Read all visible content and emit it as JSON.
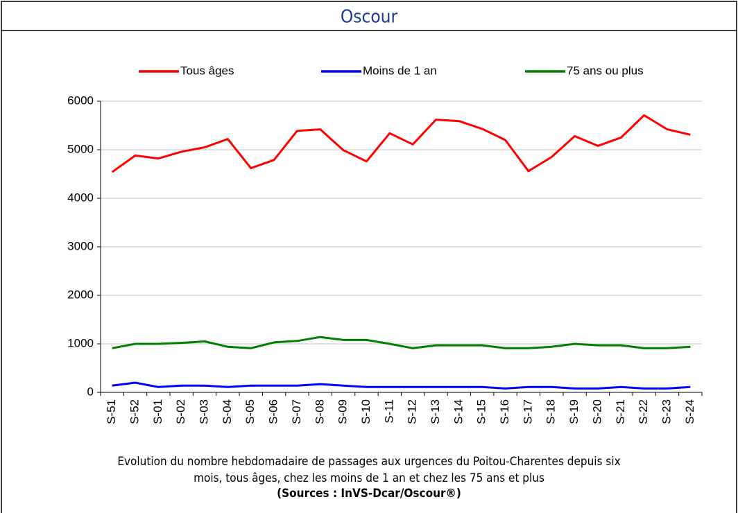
{
  "header": {
    "title": "Oscour"
  },
  "chart_data": {
    "type": "line",
    "categories": [
      "S-51",
      "S-52",
      "S-01",
      "S-02",
      "S-03",
      "S-04",
      "S-05",
      "S-06",
      "S-07",
      "S-08",
      "S-09",
      "S-10",
      "S-11",
      "S-12",
      "S-13",
      "S-14",
      "S-15",
      "S-16",
      "S-17",
      "S-18",
      "S-19",
      "S-20",
      "S-21",
      "S-22",
      "S-23",
      "S-24"
    ],
    "series": [
      {
        "name": "Tous âges",
        "color": "#ff0000",
        "values": [
          4540,
          4880,
          4820,
          4960,
          5050,
          5220,
          4620,
          4790,
          5390,
          5420,
          4990,
          4760,
          5340,
          5110,
          5620,
          5590,
          5430,
          5200,
          4560,
          4850,
          5280,
          5080,
          5250,
          5710,
          5420,
          5310
        ]
      },
      {
        "name": "Moins de 1 an",
        "color": "#0000ff",
        "values": [
          140,
          200,
          110,
          140,
          140,
          110,
          140,
          140,
          140,
          170,
          140,
          110,
          110,
          110,
          110,
          110,
          110,
          80,
          110,
          110,
          80,
          80,
          110,
          80,
          80,
          110
        ]
      },
      {
        "name": "75 ans ou plus",
        "color": "#008000",
        "values": [
          910,
          1000,
          1000,
          1020,
          1050,
          940,
          910,
          1030,
          1060,
          1140,
          1080,
          1080,
          1000,
          910,
          970,
          970,
          970,
          910,
          910,
          940,
          1000,
          970,
          970,
          910,
          910,
          940
        ]
      }
    ],
    "ylim": [
      0,
      6000
    ],
    "yticks": [
      0,
      1000,
      2000,
      3000,
      4000,
      5000,
      6000
    ],
    "grid": true,
    "legend": "top",
    "caption": [
      "Evolution du nombre hebdomadaire de passages aux urgences du Poitou-Charentes depuis six",
      "mois, tous âges, chez les moins de 1 an et chez les 75 ans  et plus"
    ],
    "source": "(Sources : InVS-Dcar/Oscour®)"
  }
}
